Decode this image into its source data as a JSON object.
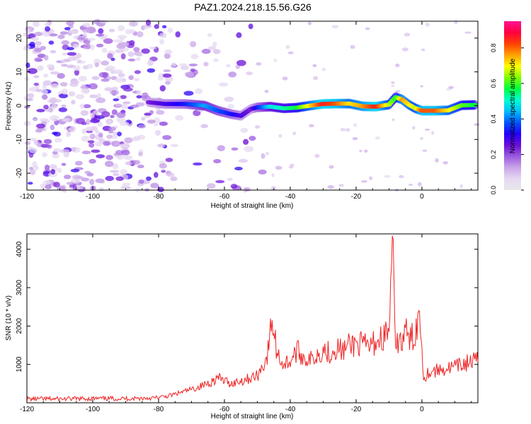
{
  "title": "PAZ1.2024.218.15.56.G26",
  "chart_data": [
    {
      "type": "heatmap",
      "xlabel": "Height of straight line (km)",
      "ylabel": "Frequency (Hz)",
      "xlim": [
        -120,
        17
      ],
      "ylim": [
        -25,
        25
      ],
      "xticks": [
        -120,
        -100,
        -80,
        -60,
        -40,
        -20,
        0
      ],
      "yticks": [
        -20,
        -10,
        0,
        10,
        20
      ],
      "colorbar": {
        "label": "Normalized spectral amplitude",
        "range": [
          0,
          0.95
        ],
        "ticks": [
          0.0,
          0.2,
          0.4,
          0.6,
          0.8
        ],
        "tick_labels": [
          "0.0",
          "0.2",
          "0.4",
          "0.6",
          "0.8"
        ],
        "colormap": [
          "#e8e8e8",
          "#e6d7f2",
          "#c9a6e8",
          "#9b59e0",
          "#6a0fd8",
          "#2200ff",
          "#0055ff",
          "#00bfff",
          "#00ffd0",
          "#00ff40",
          "#80ff00",
          "#ffff00",
          "#ffa000",
          "#ff4000",
          "#ff0040",
          "#ff1493"
        ]
      },
      "ridge": {
        "x": [
          -83,
          -78,
          -72,
          -66,
          -62,
          -58,
          -55,
          -52,
          -50,
          -46,
          -42,
          -38,
          -34,
          -30,
          -26,
          -22,
          -18,
          -14,
          -10,
          -8,
          -6,
          -4,
          -2,
          0,
          4,
          8,
          12,
          16
        ],
        "y": [
          1.0,
          0.5,
          0.5,
          0.0,
          -1.5,
          -2.5,
          -3.0,
          -1.0,
          -0.5,
          -0.3,
          -0.8,
          -0.6,
          0.0,
          0.5,
          0.6,
          0.6,
          -0.2,
          -0.3,
          0.3,
          2.5,
          1.8,
          0.3,
          -0.8,
          -1.5,
          -1.5,
          -1.4,
          0.1,
          0.2
        ],
        "amplitude": [
          0.25,
          0.3,
          0.35,
          0.45,
          0.4,
          0.35,
          0.3,
          0.25,
          0.35,
          0.5,
          0.55,
          0.6,
          0.75,
          0.9,
          0.85,
          0.75,
          0.8,
          0.9,
          0.7,
          0.6,
          0.8,
          0.75,
          0.7,
          0.85,
          0.85,
          0.75,
          0.65,
          0.6
        ]
      }
    },
    {
      "type": "line",
      "xlabel": "Height of straight line (km)",
      "ylabel": "SNR (10 * v/v)",
      "xlim": [
        -120,
        17
      ],
      "ylim": [
        0,
        4400
      ],
      "xticks": [
        -120,
        -100,
        -80,
        -60,
        -40,
        -20,
        0
      ],
      "yticks": [
        1000,
        2000,
        3000,
        4000
      ],
      "color": "#ee2222",
      "series": [
        {
          "x": [
            -120,
            -110,
            -100,
            -90,
            -80,
            -76,
            -72,
            -68,
            -64,
            -62,
            -58,
            -54,
            -50,
            -47,
            -45.5,
            -44,
            -42,
            -40,
            -38,
            -36,
            -34,
            -32,
            -30,
            -28,
            -26,
            -24,
            -22,
            -20,
            -18,
            -16,
            -14,
            -12,
            -10,
            -9,
            -8,
            -7,
            -6,
            -5,
            -4,
            -3,
            -2,
            -1,
            0,
            0.5,
            2,
            5,
            8,
            11,
            14,
            17
          ],
          "y": [
            100,
            100,
            110,
            110,
            130,
            200,
            300,
            400,
            550,
            650,
            500,
            600,
            700,
            1200,
            2150,
            1300,
            1000,
            1100,
            1350,
            1200,
            1100,
            1250,
            1400,
            1300,
            1450,
            1350,
            1500,
            1550,
            1500,
            1450,
            1600,
            1700,
            1850,
            4350,
            1200,
            1800,
            1500,
            1950,
            1600,
            1700,
            1800,
            2400,
            1500,
            650,
            800,
            850,
            900,
            950,
            1050,
            1100
          ]
        }
      ]
    }
  ]
}
